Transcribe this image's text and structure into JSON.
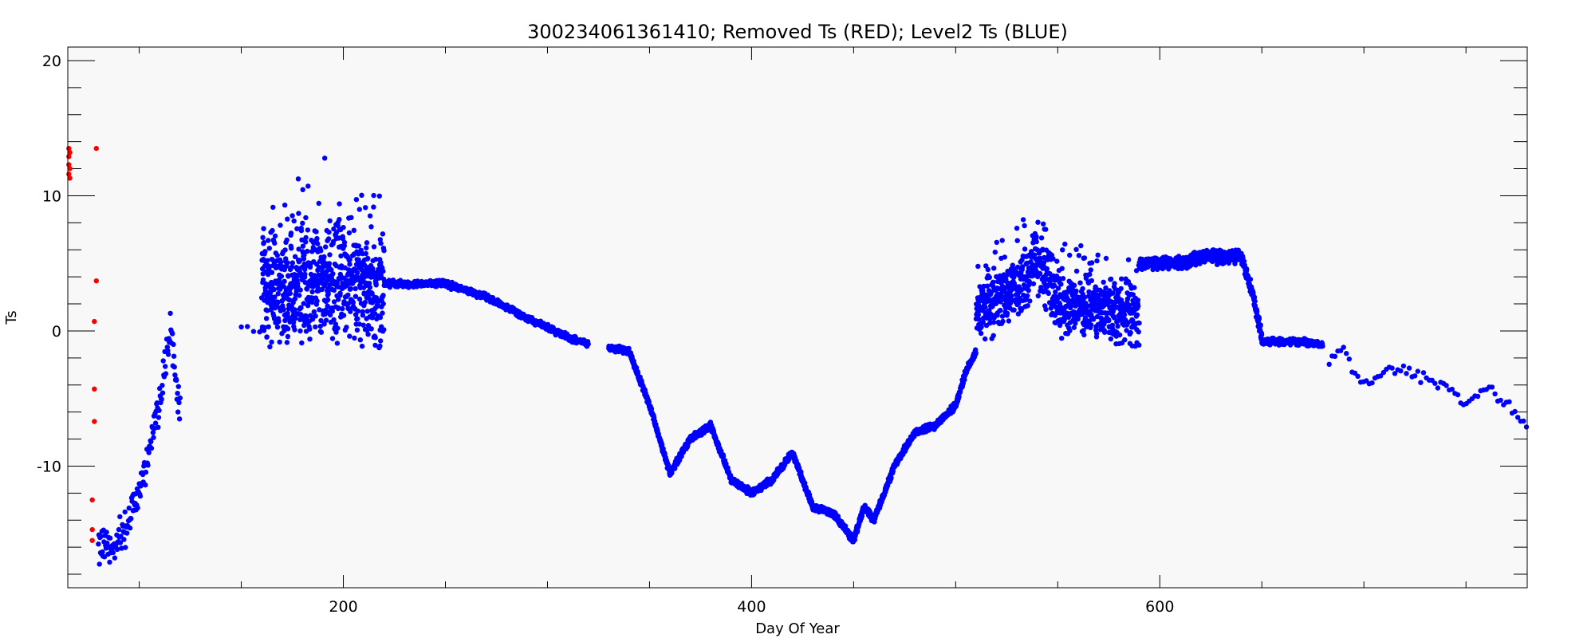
{
  "chart_data": {
    "type": "scatter",
    "title": "300234061361410; Removed Ts (RED); Level2 Ts (BLUE)",
    "xlabel": "Day Of Year",
    "ylabel": "Ts",
    "xlim": [
      65,
      780
    ],
    "ylim": [
      -19,
      21
    ],
    "x_ticks": [
      200,
      400,
      600
    ],
    "y_ticks": [
      -10,
      0,
      10,
      20
    ],
    "grid": false,
    "colors": {
      "removed": "#ff0000",
      "level2": "#0000ff",
      "background": "#f8f8f8"
    },
    "series": [
      {
        "name": "Removed Ts",
        "color": "#ff0000",
        "points": [
          [
            65.5,
            13.5
          ],
          [
            65.5,
            12.9
          ],
          [
            65.5,
            12.3
          ],
          [
            65.5,
            11.6
          ],
          [
            66,
            13.2
          ],
          [
            66,
            12.0
          ],
          [
            66,
            11.3
          ],
          [
            77,
            -12.5
          ],
          [
            77,
            -14.7
          ],
          [
            77,
            -15.5
          ],
          [
            78,
            0.7
          ],
          [
            78,
            -4.3
          ],
          [
            78,
            -6.7
          ],
          [
            79,
            13.5
          ],
          [
            79,
            3.7
          ]
        ]
      },
      {
        "name": "Level2 Ts",
        "color": "#0000ff",
        "segments": [
          {
            "x": [
              80,
              90,
              100,
              110,
              115,
              120
            ],
            "y": [
              -16,
              -15.5,
              -12,
              -5,
              0,
              -6
            ],
            "noise": 1.8,
            "step": 0.25
          },
          {
            "x": [
              150,
              160
            ],
            "y": [
              0.5,
              0
            ],
            "noise": 0.4,
            "step": 3
          },
          {
            "x": [
              160,
              200,
              220
            ],
            "y": [
              3,
              3.5,
              2.5
            ],
            "noise": 4.5,
            "step": 0.08
          },
          {
            "x": [
              220,
              250,
              270,
              290,
              310,
              320
            ],
            "y": [
              3.5,
              3.5,
              2.5,
              1.0,
              -0.5,
              -1.0
            ],
            "noise": 0.3,
            "step": 0.2
          },
          {
            "x": [
              330,
              340,
              350,
              360,
              370,
              380,
              390,
              400,
              410,
              420,
              430,
              440,
              450,
              455,
              460,
              470,
              480,
              490,
              500,
              505,
              510
            ],
            "y": [
              -1.2,
              -1.5,
              -5.5,
              -10.5,
              -8,
              -7,
              -11,
              -12,
              -11,
              -9,
              -13,
              -13.5,
              -15.5,
              -13,
              -14,
              -10,
              -7.5,
              -7,
              -5.5,
              -3,
              -1.5
            ],
            "noise": 0.3,
            "step": 0.1
          },
          {
            "x": [
              510,
              530,
              540,
              550,
              560,
              570,
              590
            ],
            "y": [
              1,
              3,
              5,
              2,
              1.5,
              1.5,
              1.0
            ],
            "noise": 2.5,
            "step": 0.1
          },
          {
            "x": [
              590,
              610,
              620,
              640,
              645,
              650
            ],
            "y": [
              5,
              5,
              5.5,
              5.5,
              3,
              -0.5
            ],
            "noise": 0.6,
            "step": 0.1
          },
          {
            "x": [
              650,
              670,
              680
            ],
            "y": [
              -0.8,
              -0.8,
              -1.0
            ],
            "noise": 0.3,
            "step": 0.2
          },
          {
            "x": [
              683,
              690,
              700,
              710,
              720,
              730,
              740,
              750,
              760,
              770,
              780
            ],
            "y": [
              -2,
              -1.5,
              -4,
              -3,
              -3,
              -3.5,
              -4,
              -5.5,
              -4,
              -5.5,
              -7
            ],
            "noise": 0.6,
            "step": 1.4
          }
        ]
      }
    ]
  }
}
